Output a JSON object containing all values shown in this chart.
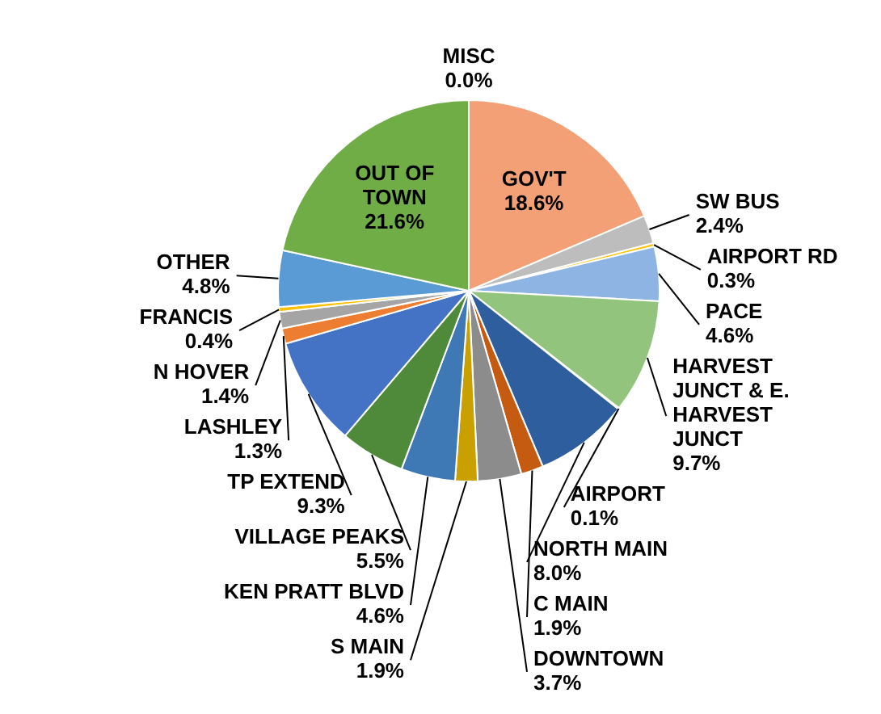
{
  "chart_data": {
    "type": "pie",
    "categories": [
      "MISC",
      "GOV'T",
      "SW BUS",
      "AIRPORT RD",
      "PACE",
      "HARVEST JUNCT & E. HARVEST JUNCT",
      "AIRPORT",
      "NORTH MAIN",
      "C MAIN",
      "DOWNTOWN",
      "S MAIN",
      "KEN PRATT BLVD",
      "VILLAGE PEAKS",
      "TP EXTEND",
      "LASHLEY",
      "N HOVER",
      "FRANCIS",
      "OTHER",
      "OUT OF TOWN"
    ],
    "values": [
      0.0,
      18.6,
      2.4,
      0.3,
      4.6,
      9.7,
      0.1,
      8.0,
      1.9,
      3.7,
      1.9,
      4.6,
      5.5,
      9.3,
      1.3,
      1.4,
      0.4,
      4.8,
      21.6
    ],
    "value_labels": [
      "0.0%",
      "18.6%",
      "2.4%",
      "0.3%",
      "4.6%",
      "9.7%",
      "0.1%",
      "8.0%",
      "1.9%",
      "3.7%",
      "1.9%",
      "4.6%",
      "5.5%",
      "9.3%",
      "1.3%",
      "1.4%",
      "0.4%",
      "4.8%",
      "21.6%"
    ],
    "colors": [
      "#5b9bd5",
      "#f4a077",
      "#bdbdbd",
      "#ffc000",
      "#8db4e2",
      "#93c47d",
      "#264478",
      "#2f5e9e",
      "#c55a11",
      "#8c8c8c",
      "#c9a000",
      "#3e78b5",
      "#4e8a3a",
      "#4472c4",
      "#ed7d31",
      "#a5a5a5",
      "#ffc000",
      "#5b9bd5",
      "#70ad47"
    ]
  }
}
